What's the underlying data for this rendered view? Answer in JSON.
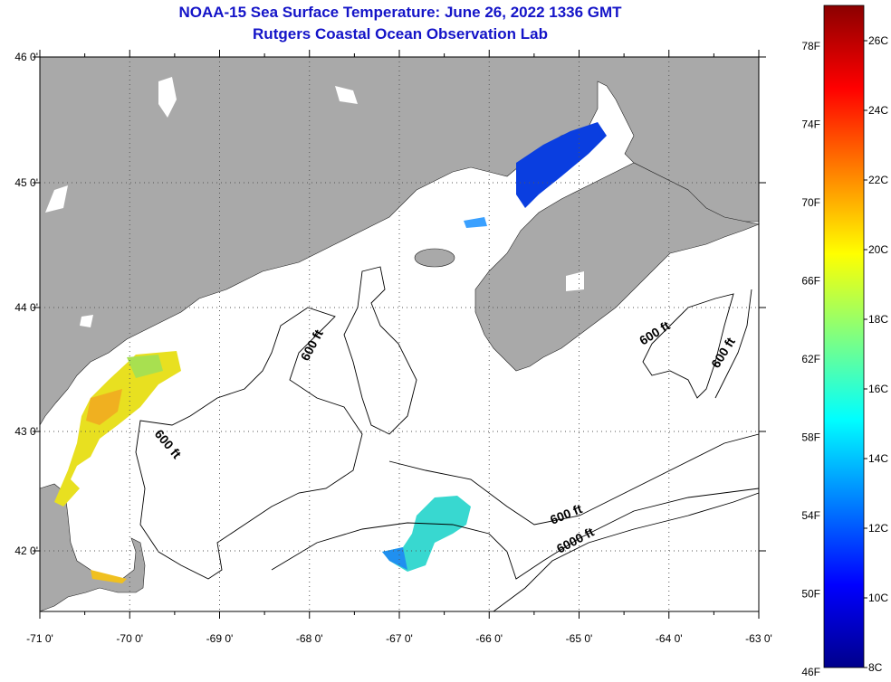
{
  "title": "NOAA-15 Sea Surface Temperature:  June 26, 2022 1336 GMT",
  "subtitle": "Rutgers Coastal Ocean Observation Lab",
  "map": {
    "lon_labels": [
      "-71 0'",
      "-70 0'",
      "-69 0'",
      "-68 0'",
      "-67 0'",
      "-66 0'",
      "-65 0'",
      "-64 0'",
      "-63 0'"
    ],
    "lat_labels": [
      "46 0'",
      "45 0'",
      "44 0'",
      "43 0'",
      "42 0'"
    ],
    "contour_labels": [
      "600 ft",
      "600 ft",
      "600 ft",
      "600 ft",
      "600 ft",
      "6000 ft"
    ],
    "colors": {
      "land": "#a9a9a9",
      "ocean": "#ffffff",
      "grid": "#666666"
    },
    "sst_patches": [
      {
        "region": "Western Gulf of Maine coast",
        "temp_range_c": [
          17,
          21
        ]
      },
      {
        "region": "Bay of Fundy",
        "temp_range_c": [
          9,
          11
        ]
      },
      {
        "region": "Georges Bank",
        "temp_range_c": [
          12,
          15
        ]
      }
    ]
  },
  "colorbar": {
    "f_labels": [
      "78F",
      "74F",
      "70F",
      "66F",
      "62F",
      "58F",
      "54F",
      "50F",
      "46F"
    ],
    "c_labels": [
      "26C",
      "24C",
      "22C",
      "20C",
      "18C",
      "16C",
      "14C",
      "12C",
      "10C",
      "8C"
    ],
    "range_c": [
      8,
      27
    ],
    "stops": [
      "#00008b",
      "#0000ff",
      "#0080ff",
      "#00ffff",
      "#80ff80",
      "#ffff00",
      "#ff8000",
      "#ff0000",
      "#8b0000"
    ]
  }
}
